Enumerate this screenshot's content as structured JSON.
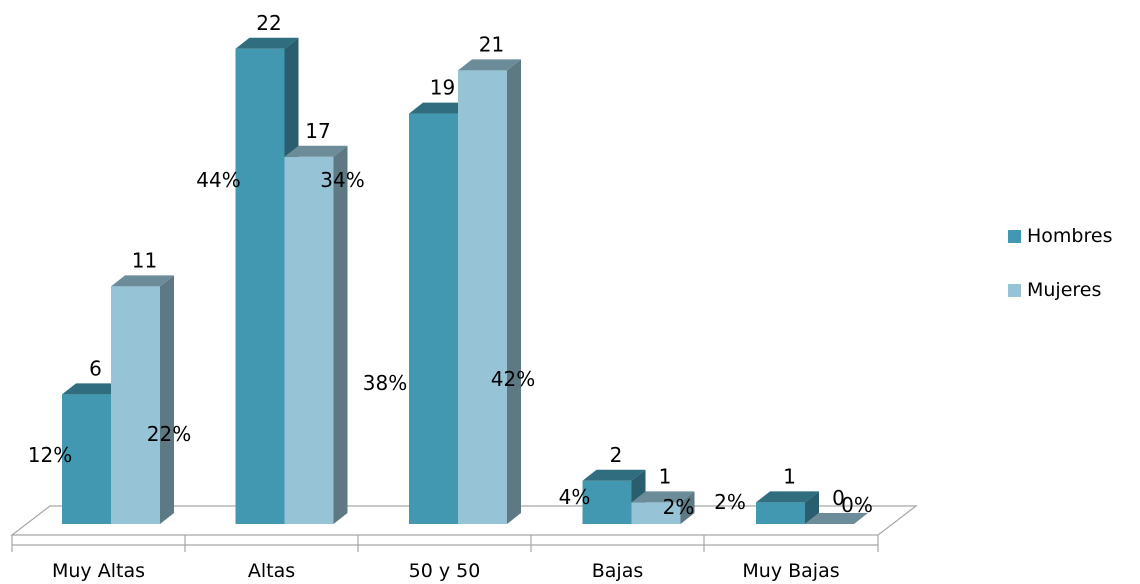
{
  "chart_data": {
    "type": "bar",
    "categories": [
      "Muy Altas",
      "Altas",
      "50 y 50",
      "Bajas",
      "Muy Bajas"
    ],
    "series": [
      {
        "name": "Hombres",
        "values": [
          6,
          22,
          19,
          2,
          1
        ],
        "percent_labels": [
          "12%",
          "44%",
          "38%",
          "4%",
          "2%"
        ],
        "color": "#4198B0"
      },
      {
        "name": "Mujeres",
        "values": [
          11,
          17,
          21,
          1,
          0
        ],
        "percent_labels": [
          "22%",
          "34%",
          "42%",
          "2%",
          "0%"
        ],
        "color": "#96C3D5"
      }
    ],
    "title": "",
    "xlabel": "",
    "ylabel": "",
    "ylim": [
      0,
      22
    ],
    "grid": false,
    "legend_position": "right",
    "style": "3d-clustered-column"
  }
}
